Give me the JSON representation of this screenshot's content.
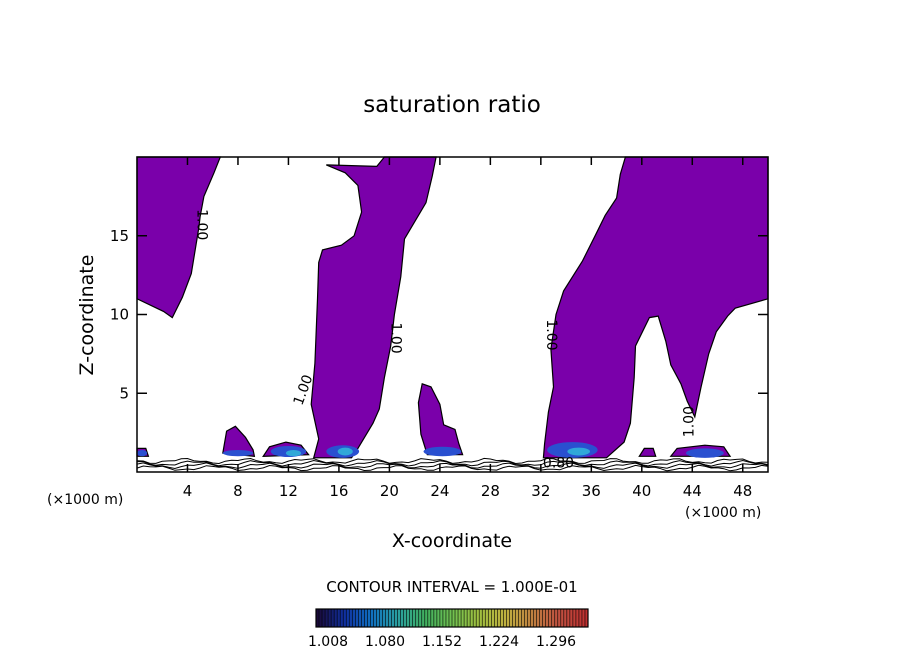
{
  "chart_data": {
    "type": "contour",
    "title": "saturation ratio",
    "xlabel": "X-coordinate",
    "ylabel": "Z-coordinate",
    "x_unit": "(×1000 m)",
    "x_unit_right": "(×1000 m)",
    "xlim": [
      0,
      50
    ],
    "ylim": [
      0,
      20
    ],
    "x_ticks": [
      4,
      8,
      12,
      16,
      20,
      24,
      28,
      32,
      36,
      40,
      44,
      48
    ],
    "y_ticks": [
      5,
      10,
      15
    ],
    "contour_interval_text": "CONTOUR INTERVAL = 1.000E-01",
    "contour_labels": [
      {
        "text": "1.00",
        "x": 5.1,
        "y": 15.7,
        "rot": 90
      },
      {
        "text": "1.00",
        "x": 20.5,
        "y": 8.5,
        "rot": 90
      },
      {
        "text": "1.00",
        "x": 13.2,
        "y": 5.2,
        "rot": -70
      },
      {
        "text": "1.00",
        "x": 32.8,
        "y": 8.7,
        "rot": 90
      },
      {
        "text": "1.00",
        "x": 43.8,
        "y": 3.2,
        "rot": -90
      },
      {
        "text": "0.80",
        "x": 33.4,
        "y": 0.55,
        "rot": 0
      }
    ],
    "colorbar": {
      "labels": [
        "1.008",
        "1.080",
        "1.152",
        "1.224",
        "1.296"
      ],
      "colors": [
        "#1a0a3a",
        "#1030a0",
        "#1070c0",
        "#2aa0a0",
        "#40b060",
        "#70c050",
        "#a0c040",
        "#c0b040",
        "#c08040",
        "#c05040",
        "#c03030"
      ]
    },
    "regions": [
      {
        "name": "purple-region-upper-left",
        "fill": "#7a00aa",
        "points": [
          [
            0,
            20
          ],
          [
            6.6,
            20
          ],
          [
            6.1,
            19
          ],
          [
            5.3,
            17.5
          ],
          [
            5.0,
            16.2
          ],
          [
            4.9,
            15.5
          ],
          [
            4.3,
            12.6
          ],
          [
            3.6,
            11.1
          ],
          [
            2.8,
            9.8
          ],
          [
            2.1,
            10.2
          ],
          [
            0,
            11.0
          ]
        ]
      },
      {
        "name": "purple-region-central-plume",
        "fill": "#7a00aa",
        "points": [
          [
            14.0,
            0.9
          ],
          [
            14.4,
            2.1
          ],
          [
            13.8,
            4.3
          ],
          [
            14.1,
            6.9
          ],
          [
            14.3,
            11.0
          ],
          [
            14.4,
            13.3
          ],
          [
            14.7,
            14.1
          ],
          [
            16.2,
            14.4
          ],
          [
            17.2,
            15.0
          ],
          [
            17.8,
            16.5
          ],
          [
            17.5,
            18.2
          ],
          [
            16.5,
            19.0
          ],
          [
            15.0,
            19.5
          ],
          [
            19.0,
            19.4
          ],
          [
            19.6,
            20
          ],
          [
            23.7,
            20
          ],
          [
            23.4,
            18.8
          ],
          [
            22.9,
            17.1
          ],
          [
            21.2,
            14.8
          ],
          [
            20.9,
            12.4
          ],
          [
            20.4,
            10.0
          ],
          [
            20.1,
            8.0
          ],
          [
            19.6,
            6.0
          ],
          [
            19.2,
            4.0
          ],
          [
            18.7,
            3.1
          ],
          [
            17.5,
            1.5
          ],
          [
            17.0,
            0.9
          ]
        ]
      },
      {
        "name": "purple-region-small-plume",
        "fill": "#7a00aa",
        "points": [
          [
            23.0,
            1.1
          ],
          [
            22.5,
            2.4
          ],
          [
            22.3,
            4.4
          ],
          [
            22.6,
            5.6
          ],
          [
            23.3,
            5.4
          ],
          [
            24.0,
            4.3
          ],
          [
            24.3,
            3.0
          ],
          [
            25.2,
            2.7
          ],
          [
            25.5,
            1.8
          ],
          [
            25.8,
            1.1
          ]
        ]
      },
      {
        "name": "purple-region-right-plume",
        "fill": "#7a00aa",
        "points": [
          [
            32.2,
            0.9
          ],
          [
            32.3,
            1.8
          ],
          [
            32.6,
            3.8
          ],
          [
            33.0,
            5.4
          ],
          [
            32.8,
            7.8
          ],
          [
            33.2,
            10.0
          ],
          [
            33.8,
            11.5
          ],
          [
            35.3,
            13.4
          ],
          [
            36.3,
            15.0
          ],
          [
            37.1,
            16.3
          ],
          [
            38.0,
            17.4
          ],
          [
            38.3,
            18.9
          ],
          [
            38.7,
            20
          ],
          [
            50,
            20
          ],
          [
            50,
            11.0
          ],
          [
            47.4,
            10.4
          ],
          [
            46.8,
            9.9
          ],
          [
            45.9,
            8.9
          ],
          [
            45.3,
            7.5
          ],
          [
            44.7,
            5.4
          ],
          [
            44.2,
            3.5
          ],
          [
            43.6,
            4.5
          ],
          [
            43.1,
            5.6
          ],
          [
            42.3,
            6.8
          ],
          [
            41.9,
            8.3
          ],
          [
            41.3,
            9.9
          ],
          [
            40.6,
            9.8
          ],
          [
            39.5,
            8.0
          ],
          [
            39.4,
            6.0
          ],
          [
            39.1,
            3.1
          ],
          [
            38.6,
            1.9
          ],
          [
            37.2,
            0.9
          ]
        ]
      },
      {
        "name": "purple-blob-8km",
        "fill": "#7a00aa",
        "points": [
          [
            6.8,
            1.2
          ],
          [
            7.1,
            2.6
          ],
          [
            7.8,
            2.9
          ],
          [
            8.6,
            2.2
          ],
          [
            9.2,
            1.4
          ],
          [
            9.3,
            1.0
          ]
        ]
      },
      {
        "name": "purple-blob-12km",
        "fill": "#7a00aa",
        "points": [
          [
            10.0,
            1.0
          ],
          [
            10.5,
            1.6
          ],
          [
            11.8,
            1.9
          ],
          [
            13.0,
            1.7
          ],
          [
            13.6,
            1.1
          ]
        ]
      },
      {
        "name": "purple-blob-44km",
        "fill": "#7a00aa",
        "points": [
          [
            42.3,
            1.0
          ],
          [
            42.8,
            1.5
          ],
          [
            45.0,
            1.7
          ],
          [
            46.5,
            1.6
          ],
          [
            47.0,
            1.0
          ]
        ]
      },
      {
        "name": "purple-blob-40km",
        "fill": "#7a00aa",
        "points": [
          [
            39.8,
            1.0
          ],
          [
            40.2,
            1.5
          ],
          [
            40.9,
            1.5
          ],
          [
            41.1,
            1.0
          ]
        ]
      },
      {
        "name": "purple-blob-0km",
        "fill": "#7a00aa",
        "points": [
          [
            0,
            1.0
          ],
          [
            0,
            1.5
          ],
          [
            0.7,
            1.5
          ],
          [
            0.9,
            1.0
          ]
        ]
      }
    ],
    "highlights": [
      {
        "name": "blue-patch-12km",
        "fill": "#2a50d0",
        "cx": 12.0,
        "cy": 1.3,
        "rx": 1.4,
        "ry": 0.35
      },
      {
        "name": "cyan-patch-12km",
        "fill": "#30a8d8",
        "cx": 12.4,
        "cy": 1.2,
        "rx": 0.6,
        "ry": 0.2
      },
      {
        "name": "blue-patch-16km",
        "fill": "#2a50d0",
        "cx": 16.3,
        "cy": 1.3,
        "rx": 1.3,
        "ry": 0.4
      },
      {
        "name": "cyan-patch-16km",
        "fill": "#30a8d8",
        "cx": 16.5,
        "cy": 1.3,
        "rx": 0.6,
        "ry": 0.25
      },
      {
        "name": "blue-patch-24km",
        "fill": "#2a50d0",
        "cx": 24.2,
        "cy": 1.3,
        "rx": 1.5,
        "ry": 0.3
      },
      {
        "name": "blue-patch-34km",
        "fill": "#2a50d0",
        "cx": 34.5,
        "cy": 1.4,
        "rx": 2.0,
        "ry": 0.5
      },
      {
        "name": "cyan-patch-34km",
        "fill": "#30a8d8",
        "cx": 35.0,
        "cy": 1.3,
        "rx": 0.9,
        "ry": 0.25
      },
      {
        "name": "blue-patch-8km",
        "fill": "#2a50d0",
        "cx": 8.0,
        "cy": 1.2,
        "rx": 1.2,
        "ry": 0.2
      },
      {
        "name": "blue-patch-44km",
        "fill": "#2a50d0",
        "cx": 45.0,
        "cy": 1.2,
        "rx": 1.5,
        "ry": 0.3
      },
      {
        "name": "blue-patch-0km",
        "fill": "#2a50d0",
        "cx": 0.4,
        "cy": 1.2,
        "rx": 0.4,
        "ry": 0.2
      }
    ]
  }
}
